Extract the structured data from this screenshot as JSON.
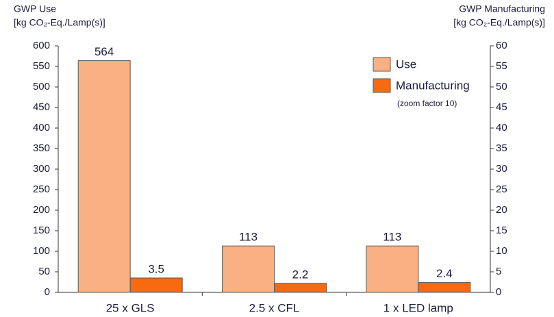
{
  "chart_data": {
    "type": "bar",
    "y_label": [
      "GWP Use",
      "[kg CO₂-Eq./Lamp(s)]"
    ],
    "y2_label": [
      "GWP Manufacturing",
      "[kg CO₂-Eq./Lamp(s)]"
    ],
    "categories": [
      "25 x GLS",
      "2.5 x CFL",
      "1 x LED lamp"
    ],
    "series": [
      {
        "name": "Use",
        "color": "#f9b183",
        "values": [
          564,
          113,
          113
        ]
      },
      {
        "name": "Manufacturing",
        "color": "#f76a10",
        "values": [
          3.5,
          2.2,
          2.4
        ],
        "axis": "y2"
      }
    ],
    "legend_note": "(zoom factor 10)",
    "legend_position": "upper right",
    "ylim": [
      0,
      600
    ],
    "yticks": [
      0,
      50,
      100,
      150,
      200,
      250,
      300,
      350,
      400,
      450,
      500,
      550,
      600
    ],
    "y2lim": [
      0,
      60
    ],
    "y2ticks": [
      0,
      5,
      10,
      15,
      20,
      25,
      30,
      35,
      40,
      45,
      50,
      55,
      60
    ]
  }
}
